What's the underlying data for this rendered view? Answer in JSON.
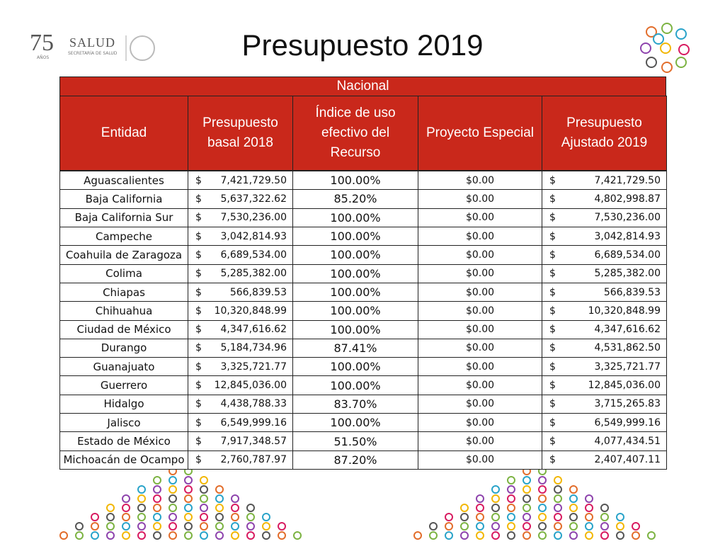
{
  "logo": {
    "number": "75",
    "years_word": "AÑOS",
    "ministry": "SALUD",
    "ministry_full": "SECRETARÍA DE SALUD"
  },
  "title": "Presupuesto 2019",
  "table": {
    "group_header": "Nacional",
    "currency_symbol": "$",
    "columns": [
      "Entidad",
      "Presupuesto basal 2018",
      "Índice de uso efectivo del Recurso",
      "Proyecto Especial",
      "Presupuesto Ajustado 2019"
    ],
    "rows": [
      [
        "Aguascalientes",
        "7,421,729.50",
        "100.00%",
        "$0.00",
        "7,421,729.50"
      ],
      [
        "Baja California",
        "5,637,322.62",
        "85.20%",
        "$0.00",
        "4,802,998.87"
      ],
      [
        "Baja California Sur",
        "7,530,236.00",
        "100.00%",
        "$0.00",
        "7,530,236.00"
      ],
      [
        "Campeche",
        "3,042,814.93",
        "100.00%",
        "$0.00",
        "3,042,814.93"
      ],
      [
        "Coahuila de Zaragoza",
        "6,689,534.00",
        "100.00%",
        "$0.00",
        "6,689,534.00"
      ],
      [
        "Colima",
        "5,285,382.00",
        "100.00%",
        "$0.00",
        "5,285,382.00"
      ],
      [
        "Chiapas",
        "566,839.53",
        "100.00%",
        "$0.00",
        "566,839.53"
      ],
      [
        "Chihuahua",
        "10,320,848.99",
        "100.00%",
        "$0.00",
        "10,320,848.99"
      ],
      [
        "Ciudad de México",
        "4,347,616.62",
        "100.00%",
        "$0.00",
        "4,347,616.62"
      ],
      [
        "Durango",
        "5,184,734.96",
        "87.41%",
        "$0.00",
        "4,531,862.50"
      ],
      [
        "Guanajuato",
        "3,325,721.77",
        "100.00%",
        "$0.00",
        "3,325,721.77"
      ],
      [
        "Guerrero",
        "12,845,036.00",
        "100.00%",
        "$0.00",
        "12,845,036.00"
      ],
      [
        "Hidalgo",
        "4,438,788.33",
        "83.70%",
        "$0.00",
        "3,715,265.83"
      ],
      [
        "Jalisco",
        "6,549,999.16",
        "100.00%",
        "$0.00",
        "6,549,999.16"
      ],
      [
        "Estado de México",
        "7,917,348.57",
        "51.50%",
        "$0.00",
        "4,077,434.51"
      ],
      [
        "Michoacán de Ocampo",
        "2,760,787.97",
        "87.20%",
        "$0.00",
        "2,407,407.11"
      ]
    ]
  }
}
